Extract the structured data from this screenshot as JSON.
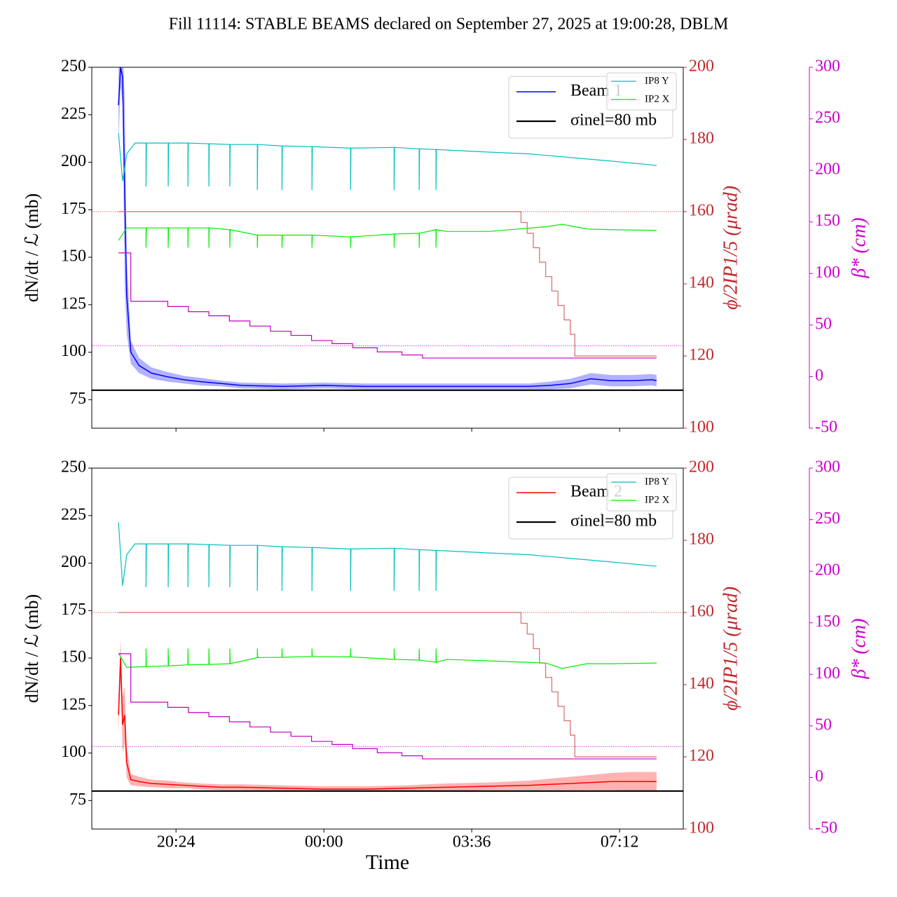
{
  "chart_data": [
    {
      "type": "line",
      "title": "Fill 11114: STABLE BEAMS declared on September 27, 2025 at 19:00:28, DBLM",
      "y_label": "dN/dt / ℒ (mb)",
      "y2_label": "ϕ/2IP1/5 (μrad)",
      "y3_label": "β* (cm)",
      "xlim": [
        18.35,
        32.75
      ],
      "xticks": [
        20.4,
        24,
        27.6,
        31.2
      ],
      "ylim": [
        60,
        250
      ],
      "yticks": [
        75,
        100,
        125,
        150,
        175,
        200,
        225,
        250
      ],
      "y2lim": [
        100,
        200
      ],
      "y2ticks": [
        100,
        120,
        140,
        160,
        180,
        200
      ],
      "y3lim": [
        -50,
        300
      ],
      "y3ticks": [
        -50,
        0,
        50,
        100,
        150,
        200,
        250,
        300
      ],
      "axis_colors": {
        "y2": "#c0282d",
        "y3": "#cc00cc"
      },
      "legend": "upper right",
      "series": [
        {
          "name": "Beam 1",
          "color": "#0000ff",
          "axis": "y",
          "x": [
            19.0,
            19.05,
            19.1,
            19.15,
            19.2,
            19.3,
            19.5,
            19.8,
            20.2,
            20.6,
            21.0,
            21.5,
            22.0,
            23.0,
            24.0,
            25.0,
            26.0,
            27.0,
            28.0,
            29.0,
            29.5,
            30.0,
            30.5,
            31.0,
            31.5,
            32.0,
            32.1
          ],
          "values": [
            230,
            250,
            245,
            185,
            130,
            100,
            93,
            89,
            87,
            85.5,
            84.5,
            83.5,
            82.5,
            82,
            82.5,
            82,
            82,
            82,
            82,
            82,
            82.5,
            83.5,
            86,
            85,
            85,
            85.5,
            85
          ],
          "error": [
            20,
            10,
            15,
            50,
            20,
            6,
            4,
            3,
            2.5,
            2,
            2,
            1.5,
            1.5,
            1.5,
            1.5,
            1.5,
            1.5,
            1.5,
            1.5,
            1.5,
            2,
            2.5,
            3,
            3,
            3,
            3,
            3
          ]
        },
        {
          "name": "σinel=80 mb",
          "color": "#000000",
          "axis": "y",
          "value": 80
        },
        {
          "name": "IP8 Y",
          "color": "#00bfbf",
          "axis": "y2",
          "x": [
            19.0,
            19.1,
            19.2,
            19.4,
            19.67,
            19.67,
            19.68,
            20.21,
            20.21,
            20.22,
            20.69,
            20.69,
            20.7,
            21.2,
            21.2,
            21.21,
            21.71,
            21.71,
            21.72,
            22.38,
            22.38,
            22.39,
            22.98,
            22.98,
            22.99,
            23.71,
            23.71,
            23.72,
            24.65,
            24.65,
            24.66,
            25.71,
            25.71,
            25.72,
            26.32,
            26.32,
            26.33,
            26.73,
            26.73,
            26.74,
            28.0,
            29.0,
            30.0,
            31.0,
            32.1
          ],
          "values": [
            181.7,
            168.5,
            176,
            179,
            179,
            167,
            179,
            179,
            167,
            179,
            179,
            167,
            179,
            178.8,
            167,
            178.8,
            178.6,
            167,
            178.6,
            178.6,
            166,
            178.6,
            178.2,
            166,
            178.2,
            178,
            166,
            178,
            177.6,
            166,
            177.6,
            177.8,
            166,
            177.8,
            177.4,
            166,
            177.4,
            177.2,
            166,
            177.2,
            176.5,
            176,
            175,
            174,
            172.8
          ]
        },
        {
          "name": "IP2 X",
          "color": "#00ee00",
          "axis": "y2",
          "x": [
            19.0,
            19.2,
            19.67,
            19.67,
            19.68,
            20.21,
            20.21,
            20.22,
            20.69,
            20.69,
            20.7,
            21.2,
            21.2,
            21.21,
            21.71,
            21.71,
            21.72,
            22.38,
            22.38,
            22.39,
            22.98,
            22.98,
            22.99,
            23.71,
            23.71,
            23.72,
            24.65,
            24.65,
            24.66,
            25.71,
            25.71,
            25.72,
            26.32,
            26.32,
            26.33,
            26.73,
            26.73,
            26.74,
            27.0,
            28.0,
            29.4,
            29.8,
            30.4,
            31.0,
            32.1
          ],
          "values": [
            152,
            155.5,
            155.5,
            150,
            155.5,
            155.5,
            150,
            155.5,
            155.5,
            150,
            155.5,
            155.5,
            150,
            155.5,
            155,
            150,
            155,
            153.5,
            150,
            153.5,
            153.5,
            150,
            153.5,
            153.5,
            150,
            153.5,
            153,
            150,
            153,
            153.8,
            150,
            153.8,
            154,
            150,
            154,
            155,
            150,
            155,
            154.5,
            154.5,
            155.8,
            156.5,
            155.2,
            155,
            154.8
          ]
        },
        {
          "color": "#d86a6a",
          "axis": "y2",
          "drawstyle": "steps-post",
          "x": [
            19.0,
            28.66,
            28.8,
            28.95,
            29.1,
            29.25,
            29.4,
            29.55,
            29.7,
            29.85,
            30.0,
            30.11,
            32.1
          ],
          "values": [
            160,
            160,
            157,
            154,
            150,
            146,
            142,
            138,
            134,
            130,
            126,
            120,
            120
          ]
        },
        {
          "color": "#bf00bf",
          "axis": "y3",
          "drawstyle": "steps-post",
          "x": [
            19.0,
            19.3,
            20.2,
            20.7,
            21.2,
            21.7,
            22.2,
            22.7,
            23.2,
            23.7,
            24.2,
            24.7,
            25.3,
            25.9,
            26.4,
            32.1
          ],
          "values": [
            120,
            73,
            68,
            63,
            59,
            54,
            49,
            44,
            40,
            35,
            32,
            28,
            24,
            21,
            18,
            18
          ]
        }
      ],
      "hlines": [
        {
          "value": 160,
          "axis": "y2",
          "color": "#d84040"
        },
        {
          "value": 30,
          "axis": "y3",
          "color": "#cc00cc"
        }
      ]
    },
    {
      "type": "line",
      "x_label": "Time",
      "y_label": "dN/dt / ℒ (mb)",
      "y2_label": "ϕ/2IP1/5 (μrad)",
      "y3_label": "β* (cm)",
      "xlim": [
        18.35,
        32.75
      ],
      "xticks": [
        {
          "value": 20.4,
          "label": "20:24"
        },
        {
          "value": 24,
          "label": "00:00"
        },
        {
          "value": 27.6,
          "label": "03:36"
        },
        {
          "value": 31.2,
          "label": "07:12"
        }
      ],
      "ylim": [
        60,
        250
      ],
      "yticks": [
        75,
        100,
        125,
        150,
        175,
        200,
        225,
        250
      ],
      "y2lim": [
        100,
        200
      ],
      "y2ticks": [
        100,
        120,
        140,
        160,
        180,
        200
      ],
      "y3lim": [
        -50,
        300
      ],
      "y3ticks": [
        -50,
        0,
        50,
        100,
        150,
        200,
        250,
        300
      ],
      "axis_colors": {
        "y2": "#c0282d",
        "y3": "#cc00cc"
      },
      "legend": "upper right",
      "series": [
        {
          "name": "Beam 2",
          "color": "#ff0000",
          "axis": "y",
          "x": [
            19.0,
            19.05,
            19.1,
            19.15,
            19.2,
            19.3,
            19.5,
            19.8,
            20.2,
            20.6,
            21.0,
            21.5,
            22.0,
            23.0,
            24.0,
            25.0,
            26.0,
            27.0,
            28.0,
            29.0,
            29.5,
            30.0,
            30.5,
            31.0,
            31.5,
            32.0,
            32.1
          ],
          "values": [
            120,
            150,
            115,
            120,
            95,
            86,
            85,
            84,
            83.5,
            83,
            82.5,
            82,
            82,
            81.5,
            81,
            81,
            81.5,
            82,
            82.5,
            83,
            83.5,
            84,
            84.5,
            85,
            85,
            85,
            85
          ],
          "error": [
            10,
            10,
            15,
            15,
            8,
            3,
            2.5,
            2,
            2,
            1.5,
            1.5,
            1.5,
            1.5,
            1.5,
            1.5,
            1.5,
            1.5,
            2,
            2,
            2.5,
            3,
            3.5,
            4,
            4.5,
            5,
            5,
            5
          ]
        },
        {
          "name": "σinel=80 mb",
          "color": "#000000",
          "axis": "y",
          "value": 80
        },
        {
          "name": "IP8 Y",
          "color": "#00bfbf",
          "axis": "y2",
          "x": [
            19.0,
            19.1,
            19.2,
            19.4,
            19.67,
            19.67,
            19.68,
            20.21,
            20.21,
            20.22,
            20.69,
            20.69,
            20.7,
            21.2,
            21.2,
            21.21,
            21.71,
            21.71,
            21.72,
            22.38,
            22.38,
            22.39,
            22.98,
            22.98,
            22.99,
            23.71,
            23.71,
            23.72,
            24.65,
            24.65,
            24.66,
            25.71,
            25.71,
            25.72,
            26.32,
            26.32,
            26.33,
            26.73,
            26.73,
            26.74,
            28.0,
            29.0,
            30.0,
            31.0,
            32.1
          ],
          "values": [
            185,
            167.4,
            176,
            179,
            179,
            167,
            179,
            179,
            167,
            179,
            179,
            167,
            179,
            178.8,
            167,
            178.8,
            178.6,
            167,
            178.6,
            178.6,
            166,
            178.6,
            178.2,
            166,
            178.2,
            178,
            166,
            178,
            177.6,
            166,
            177.6,
            177.8,
            166,
            177.8,
            177.4,
            166,
            177.4,
            177.2,
            166,
            177.2,
            176.5,
            176,
            175,
            174,
            172.8
          ]
        },
        {
          "name": "IP2 X",
          "color": "#00ee00",
          "axis": "y2",
          "x": [
            19.0,
            19.2,
            19.67,
            19.67,
            19.68,
            20.21,
            20.21,
            20.22,
            20.69,
            20.69,
            20.7,
            21.2,
            21.2,
            21.21,
            21.71,
            21.71,
            21.72,
            22.38,
            22.38,
            22.39,
            22.98,
            22.98,
            22.99,
            23.71,
            23.71,
            23.72,
            24.65,
            24.65,
            24.66,
            25.71,
            25.71,
            25.72,
            26.32,
            26.32,
            26.33,
            26.73,
            26.73,
            26.74,
            27.0,
            28.0,
            29.4,
            29.8,
            30.4,
            31.0,
            32.1
          ],
          "values": [
            148.7,
            144.8,
            145,
            150,
            145,
            145.2,
            150,
            145.2,
            145.5,
            150,
            145.5,
            145.6,
            150,
            145.6,
            145.8,
            150,
            145.8,
            147.5,
            150,
            147.5,
            147.6,
            150,
            147.6,
            147.8,
            150,
            147.8,
            147.7,
            150,
            147.7,
            147,
            150,
            147,
            146.8,
            150,
            146.8,
            146.2,
            150,
            146.2,
            147,
            146.6,
            146,
            144.5,
            145.8,
            145.8,
            146
          ]
        },
        {
          "color": "#d86a6a",
          "axis": "y2",
          "drawstyle": "steps-post",
          "x": [
            19.0,
            28.66,
            28.8,
            28.95,
            29.1,
            29.25,
            29.4,
            29.55,
            29.7,
            29.85,
            30.0,
            30.11,
            32.1
          ],
          "values": [
            160,
            160,
            157,
            154,
            150,
            146,
            142,
            138,
            134,
            130,
            126,
            120,
            120
          ]
        },
        {
          "color": "#bf00bf",
          "axis": "y3",
          "drawstyle": "steps-post",
          "x": [
            19.0,
            19.3,
            20.2,
            20.7,
            21.2,
            21.7,
            22.2,
            22.7,
            23.2,
            23.7,
            24.2,
            24.7,
            25.3,
            25.9,
            26.4,
            32.1
          ],
          "values": [
            120,
            73,
            68,
            63,
            59,
            54,
            49,
            44,
            40,
            35,
            32,
            28,
            24,
            21,
            18,
            18
          ]
        }
      ],
      "hlines": [
        {
          "value": 160,
          "axis": "y2",
          "color": "#d84040"
        },
        {
          "value": 30,
          "axis": "y3",
          "color": "#cc00cc"
        }
      ]
    }
  ]
}
